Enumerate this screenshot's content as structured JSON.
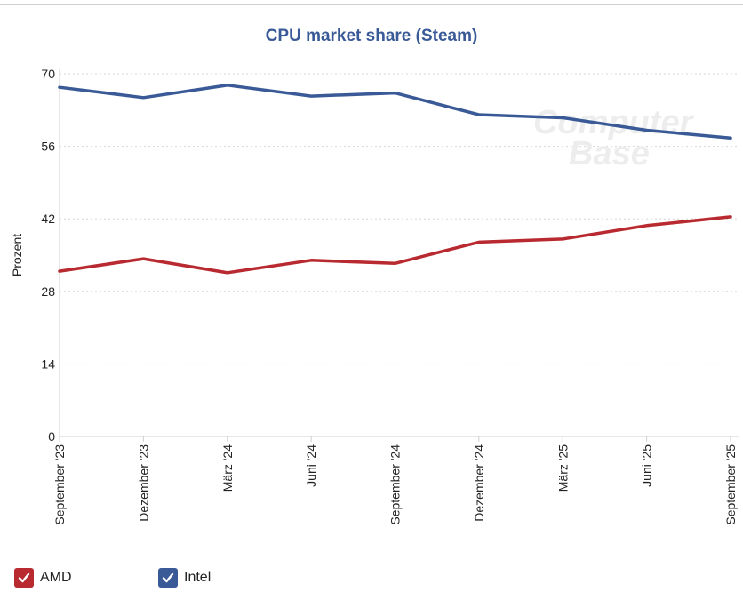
{
  "chart_data": {
    "type": "line",
    "title": "CPU market share (Steam)",
    "ylabel": "Prozent",
    "xlabel": "",
    "ylim": [
      0,
      70
    ],
    "yticks": [
      0,
      14,
      28,
      42,
      56,
      70
    ],
    "grid": true,
    "legend": "bottom-left",
    "watermark": "ComputerBase",
    "categories": [
      "September '23",
      "Dezember '23",
      "März '24",
      "Juni '24",
      "September '24",
      "Dezember '24",
      "März '25",
      "Juni '25",
      "September '25"
    ],
    "series": [
      {
        "name": "AMD",
        "color": "#b82a30",
        "values": [
          31.9,
          34.3,
          31.6,
          34.0,
          33.4,
          37.5,
          38.1,
          40.7,
          42.4
        ]
      },
      {
        "name": "Intel",
        "color": "#3a5a97",
        "values": [
          67.4,
          65.4,
          67.8,
          65.7,
          66.3,
          62.1,
          61.5,
          59.1,
          57.6
        ]
      }
    ]
  }
}
